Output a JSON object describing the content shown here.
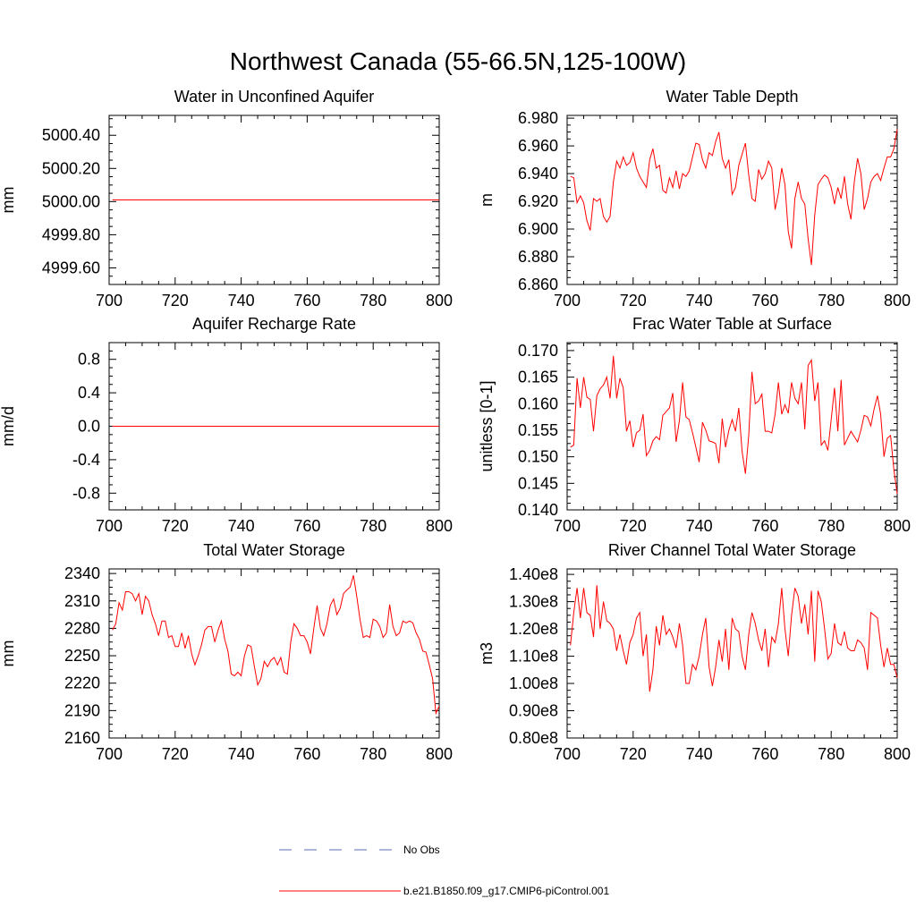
{
  "figure": {
    "title": "Northwest Canada (55-66.5N,125-100W)",
    "colors": {
      "model": "#ff0000",
      "obs": "#5b6fb8",
      "axis": "#000000"
    }
  },
  "legend": {
    "obs_label": "No Obs",
    "model_label": "b.e21.B1850.f09_g17.CMIP6-piControl.001"
  },
  "chart_data": [
    {
      "type": "line",
      "title": "Water in Unconfined Aquifer",
      "ylabel": "mm",
      "xlim": [
        700,
        800
      ],
      "ylim": [
        4999.5,
        5000.52
      ],
      "xticks": [
        "700",
        "720",
        "740",
        "760",
        "780",
        "800"
      ],
      "yticks": [
        4999.6,
        4999.8,
        5000.0,
        5000.2,
        5000.4
      ],
      "yticklabels": [
        "4999.60",
        "4999.80",
        "5000.00",
        "5000.20",
        "5000.40"
      ],
      "x_start": 701,
      "values": [
        5000.01,
        5000.01,
        5000.01,
        5000.01,
        5000.01,
        5000.01,
        5000.01,
        5000.01,
        5000.01,
        5000.01,
        5000.01,
        5000.01,
        5000.01,
        5000.01,
        5000.01,
        5000.01,
        5000.01,
        5000.01,
        5000.01,
        5000.01,
        5000.01,
        5000.01,
        5000.01,
        5000.01,
        5000.01,
        5000.01,
        5000.01,
        5000.01,
        5000.01,
        5000.01,
        5000.01,
        5000.01,
        5000.01,
        5000.01,
        5000.01,
        5000.01,
        5000.01,
        5000.01,
        5000.01,
        5000.01,
        5000.01,
        5000.01,
        5000.01,
        5000.01,
        5000.01,
        5000.01,
        5000.01,
        5000.01,
        5000.01,
        5000.01,
        5000.01,
        5000.01,
        5000.01,
        5000.01,
        5000.01,
        5000.01,
        5000.01,
        5000.01,
        5000.01,
        5000.01,
        5000.01,
        5000.01,
        5000.01,
        5000.01,
        5000.01,
        5000.01,
        5000.01,
        5000.01,
        5000.01,
        5000.01,
        5000.01,
        5000.01,
        5000.01,
        5000.01,
        5000.01,
        5000.01,
        5000.01,
        5000.01,
        5000.01,
        5000.01,
        5000.01,
        5000.01,
        5000.01,
        5000.01,
        5000.01,
        5000.01,
        5000.01,
        5000.01,
        5000.01,
        5000.01,
        5000.01,
        5000.01,
        5000.01,
        5000.01,
        5000.01,
        5000.01,
        5000.01,
        5000.01,
        5000.01,
        5000.01
      ]
    },
    {
      "type": "line",
      "title": "Water Table Depth",
      "ylabel": "m",
      "xlim": [
        700,
        800
      ],
      "ylim": [
        6.86,
        6.982
      ],
      "xticks": [
        "700",
        "720",
        "740",
        "760",
        "780",
        "800"
      ],
      "yticks": [
        6.86,
        6.88,
        6.9,
        6.92,
        6.94,
        6.96,
        6.98
      ],
      "yticklabels": [
        "6.860",
        "6.880",
        "6.900",
        "6.920",
        "6.940",
        "6.960",
        "6.980"
      ],
      "x_start": 701,
      "values": [
        6.938,
        6.937,
        6.919,
        6.924,
        6.919,
        6.906,
        6.899,
        6.922,
        6.92,
        6.922,
        6.909,
        6.905,
        6.909,
        6.934,
        6.949,
        6.944,
        6.952,
        6.946,
        6.948,
        6.955,
        6.944,
        6.938,
        6.934,
        6.93,
        6.95,
        6.958,
        6.944,
        6.946,
        6.928,
        6.926,
        6.937,
        6.93,
        6.942,
        6.929,
        6.94,
        6.938,
        6.942,
        6.952,
        6.962,
        6.961,
        6.95,
        6.944,
        6.955,
        6.953,
        6.963,
        6.97,
        6.951,
        6.944,
        6.95,
        6.925,
        6.93,
        6.946,
        6.954,
        6.962,
        6.939,
        6.922,
        6.92,
        6.943,
        6.936,
        6.94,
        6.949,
        6.944,
        6.914,
        6.926,
        6.944,
        6.932,
        6.898,
        6.886,
        6.922,
        6.934,
        6.922,
        6.918,
        6.893,
        6.874,
        6.91,
        6.932,
        6.936,
        6.939,
        6.937,
        6.93,
        6.918,
        6.93,
        6.922,
        6.938,
        6.918,
        6.907,
        6.934,
        6.951,
        6.94,
        6.914,
        6.922,
        6.934,
        6.938,
        6.94,
        6.935,
        6.944,
        6.952,
        6.952,
        6.958,
        6.972
      ]
    },
    {
      "type": "line",
      "title": "Aquifer Recharge Rate",
      "ylabel": "mm/d",
      "xlim": [
        700,
        800
      ],
      "ylim": [
        -1.0,
        1.0
      ],
      "xticks": [
        "700",
        "720",
        "740",
        "760",
        "780",
        "800"
      ],
      "yticks": [
        -0.8,
        -0.4,
        0.0,
        0.4,
        0.8
      ],
      "yticklabels": [
        "-0.8",
        "-0.4",
        "0.0",
        "0.4",
        "0.8"
      ],
      "x_start": 701,
      "values": [
        0,
        0,
        0,
        0,
        0,
        0,
        0,
        0,
        0,
        0,
        0,
        0,
        0,
        0,
        0,
        0,
        0,
        0,
        0,
        0,
        0,
        0,
        0,
        0,
        0,
        0,
        0,
        0,
        0,
        0,
        0,
        0,
        0,
        0,
        0,
        0,
        0,
        0,
        0,
        0,
        0,
        0,
        0,
        0,
        0,
        0,
        0,
        0,
        0,
        0,
        0,
        0,
        0,
        0,
        0,
        0,
        0,
        0,
        0,
        0,
        0,
        0,
        0,
        0,
        0,
        0,
        0,
        0,
        0,
        0,
        0,
        0,
        0,
        0,
        0,
        0,
        0,
        0,
        0,
        0,
        0,
        0,
        0,
        0,
        0,
        0,
        0,
        0,
        0,
        0,
        0,
        0,
        0,
        0,
        0,
        0,
        0,
        0,
        0,
        0
      ]
    },
    {
      "type": "line",
      "title": "Frac Water Table at Surface",
      "ylabel": "unitless [0-1]",
      "xlim": [
        700,
        800
      ],
      "ylim": [
        0.14,
        0.1715
      ],
      "xticks": [
        "700",
        "720",
        "740",
        "760",
        "780",
        "800"
      ],
      "yticks": [
        0.14,
        0.145,
        0.15,
        0.155,
        0.16,
        0.165,
        0.17
      ],
      "yticklabels": [
        "0.140",
        "0.145",
        "0.150",
        "0.155",
        "0.160",
        "0.165",
        "0.170"
      ],
      "x_start": 701,
      "values": [
        0.1518,
        0.1522,
        0.1648,
        0.1592,
        0.165,
        0.1612,
        0.1608,
        0.1548,
        0.1615,
        0.1628,
        0.1635,
        0.165,
        0.161,
        0.169,
        0.161,
        0.1648,
        0.163,
        0.1548,
        0.1568,
        0.1518,
        0.1545,
        0.155,
        0.158,
        0.1502,
        0.1512,
        0.153,
        0.1538,
        0.1532,
        0.1578,
        0.1585,
        0.1592,
        0.162,
        0.1528,
        0.1568,
        0.164,
        0.1575,
        0.157,
        0.1545,
        0.1518,
        0.149,
        0.1565,
        0.155,
        0.153,
        0.1528,
        0.1525,
        0.1488,
        0.1572,
        0.1518,
        0.155,
        0.157,
        0.1548,
        0.1592,
        0.151,
        0.1468,
        0.154,
        0.166,
        0.16,
        0.1605,
        0.1618,
        0.1548,
        0.1548,
        0.1545,
        0.158,
        0.164,
        0.158,
        0.1598,
        0.1582,
        0.164,
        0.161,
        0.16,
        0.164,
        0.1552,
        0.1672,
        0.1682,
        0.1605,
        0.164,
        0.1522,
        0.153,
        0.1512,
        0.157,
        0.163,
        0.1548,
        0.1645,
        0.1522,
        0.1535,
        0.1548,
        0.1538,
        0.1528,
        0.155,
        0.1578,
        0.1575,
        0.1558,
        0.159,
        0.1615,
        0.158,
        0.15,
        0.1535,
        0.154,
        0.1475,
        0.143
      ]
    },
    {
      "type": "line",
      "title": "Total Water Storage",
      "ylabel": "mm",
      "xlim": [
        700,
        800
      ],
      "ylim": [
        2160,
        2345
      ],
      "xticks": [
        "700",
        "720",
        "740",
        "760",
        "780",
        "800"
      ],
      "yticks": [
        2160,
        2190,
        2220,
        2250,
        2280,
        2310,
        2340
      ],
      "yticklabels": [
        "2160",
        "2190",
        "2220",
        "2250",
        "2280",
        "2310",
        "2340"
      ],
      "x_start": 701,
      "values": [
        2278,
        2285,
        2308,
        2300,
        2320,
        2320,
        2318,
        2310,
        2318,
        2295,
        2315,
        2310,
        2295,
        2285,
        2272,
        2288,
        2288,
        2270,
        2272,
        2260,
        2260,
        2275,
        2258,
        2272,
        2252,
        2240,
        2250,
        2262,
        2278,
        2282,
        2282,
        2265,
        2278,
        2288,
        2268,
        2255,
        2230,
        2228,
        2232,
        2228,
        2250,
        2262,
        2260,
        2238,
        2218,
        2225,
        2244,
        2238,
        2245,
        2248,
        2240,
        2248,
        2232,
        2230,
        2265,
        2285,
        2280,
        2272,
        2272,
        2265,
        2252,
        2280,
        2305,
        2280,
        2272,
        2285,
        2305,
        2312,
        2295,
        2302,
        2318,
        2322,
        2325,
        2338,
        2315,
        2290,
        2270,
        2272,
        2270,
        2290,
        2288,
        2282,
        2270,
        2275,
        2306,
        2282,
        2272,
        2275,
        2288,
        2286,
        2288,
        2286,
        2275,
        2268,
        2255,
        2254,
        2240,
        2225,
        2187,
        2195
      ]
    },
    {
      "type": "line",
      "title": "River Channel Total Water Storage",
      "ylabel": "m3",
      "xlim": [
        700,
        800
      ],
      "ylim": [
        0.8,
        1.42
      ],
      "ylabel_units": "1e8",
      "xticks": [
        "700",
        "720",
        "740",
        "760",
        "780",
        "800"
      ],
      "yticks": [
        0.8,
        0.9,
        1.0,
        1.1,
        1.2,
        1.3,
        1.4
      ],
      "yticklabels": [
        "0.80e8",
        "0.90e8",
        "1.00e8",
        "1.10e8",
        "1.20e8",
        "1.30e8",
        "1.40e8"
      ],
      "x_start": 701,
      "values": [
        1.14,
        1.26,
        1.35,
        1.24,
        1.35,
        1.26,
        1.25,
        1.17,
        1.36,
        1.2,
        1.3,
        1.23,
        1.22,
        1.2,
        1.12,
        1.18,
        1.12,
        1.07,
        1.15,
        1.18,
        1.24,
        1.26,
        1.1,
        1.18,
        0.97,
        1.05,
        1.21,
        1.14,
        1.25,
        1.18,
        1.2,
        1.17,
        1.13,
        1.22,
        1.14,
        1.0,
        1.0,
        1.07,
        1.05,
        1.1,
        1.18,
        1.24,
        1.06,
        0.99,
        1.06,
        1.16,
        1.08,
        1.2,
        1.05,
        1.24,
        1.2,
        1.19,
        1.1,
        1.05,
        1.18,
        1.26,
        1.22,
        1.16,
        1.12,
        1.2,
        1.06,
        1.17,
        1.15,
        1.22,
        1.35,
        1.2,
        1.1,
        1.25,
        1.35,
        1.32,
        1.22,
        1.29,
        1.18,
        1.34,
        1.08,
        1.34,
        1.3,
        1.2,
        1.09,
        1.11,
        1.22,
        1.15,
        1.14,
        1.19,
        1.13,
        1.12,
        1.12,
        1.16,
        1.15,
        1.13,
        1.05,
        1.26,
        1.25,
        1.24,
        1.14,
        1.06,
        1.13,
        1.07,
        1.07,
        1.02
      ]
    }
  ]
}
